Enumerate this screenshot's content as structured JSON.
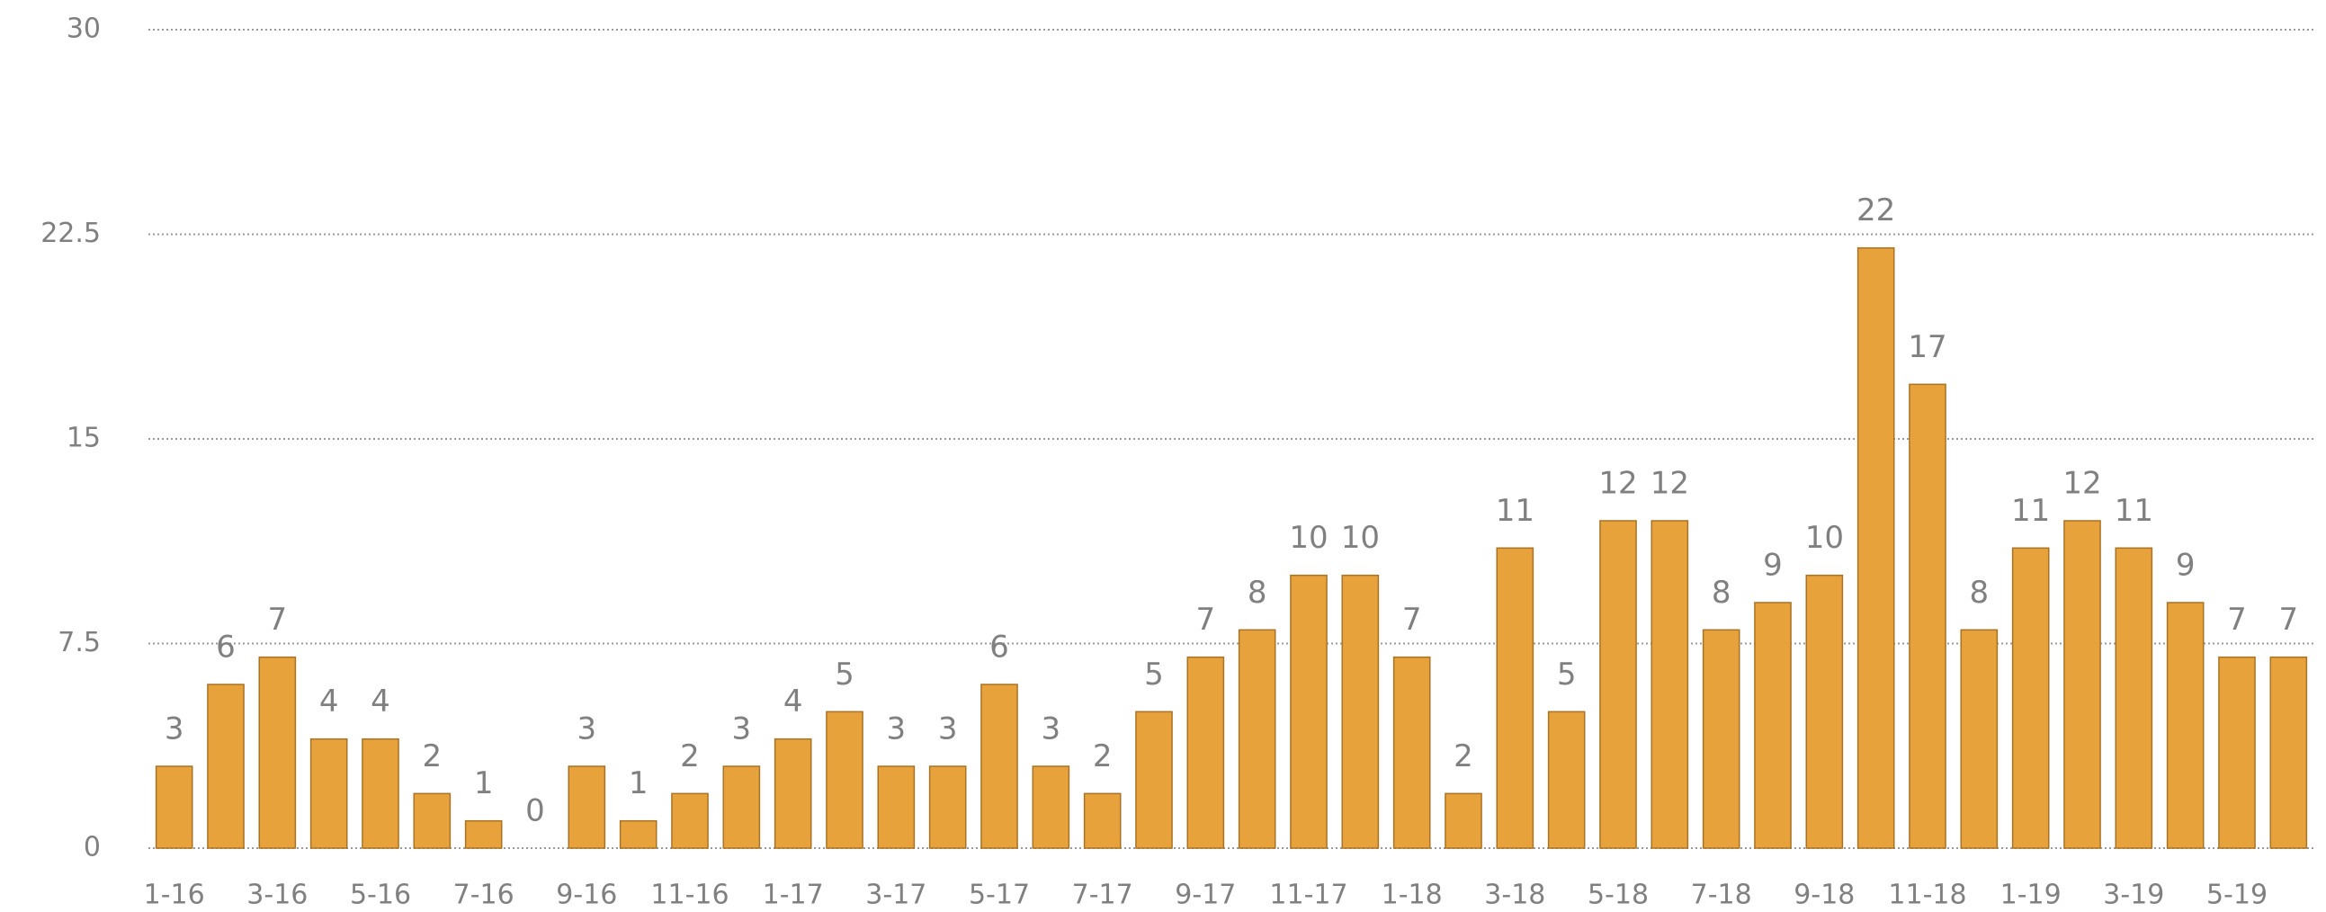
{
  "chart_data": {
    "type": "bar",
    "categories": [
      "1-16",
      null,
      "3-16",
      null,
      "5-16",
      null,
      "7-16",
      null,
      "9-16",
      null,
      "11-16",
      null,
      "1-17",
      null,
      "3-17",
      null,
      "5-17",
      null,
      "7-17",
      null,
      "9-17",
      null,
      "11-17",
      null,
      "1-18",
      null,
      "3-18",
      null,
      "5-18",
      null,
      "7-18",
      null,
      "9-18",
      null,
      "11-18",
      null,
      "1-19",
      null,
      "3-19",
      null,
      "5-19",
      null
    ],
    "values": [
      3,
      6,
      7,
      4,
      4,
      2,
      1,
      0,
      3,
      1,
      2,
      3,
      4,
      5,
      3,
      3,
      6,
      3,
      2,
      5,
      7,
      8,
      10,
      10,
      7,
      2,
      11,
      5,
      12,
      12,
      8,
      9,
      10,
      22,
      17,
      8,
      11,
      12,
      11,
      9,
      7,
      7
    ],
    "color": "#e8a23c",
    "ylim": [
      0,
      30
    ],
    "yticks": [
      0,
      7.5,
      15,
      22.5,
      30
    ],
    "grid": true
  }
}
